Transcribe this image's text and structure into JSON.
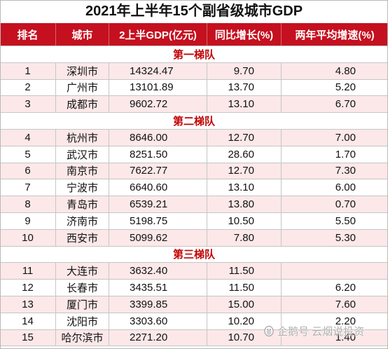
{
  "chart_data": {
    "type": "table",
    "title": "2021年上半年15个副省级城市GDP",
    "columns": [
      "排名",
      "城市",
      "2上半GDP(亿元)",
      "同比增长(%)",
      "两年平均增速(%)"
    ],
    "groups": [
      {
        "name": "第一梯队",
        "rows": [
          [
            "1",
            "深圳市",
            "14324.47",
            "9.70",
            "4.80"
          ],
          [
            "2",
            "广州市",
            "13101.89",
            "13.70",
            "5.20"
          ],
          [
            "3",
            "成都市",
            "9602.72",
            "13.10",
            "6.70"
          ]
        ]
      },
      {
        "name": "第二梯队",
        "rows": [
          [
            "4",
            "杭州市",
            "8646.00",
            "12.70",
            "7.00"
          ],
          [
            "5",
            "武汉市",
            "8251.50",
            "28.60",
            "1.70"
          ],
          [
            "6",
            "南京市",
            "7622.77",
            "12.70",
            "7.30"
          ],
          [
            "7",
            "宁波市",
            "6640.60",
            "13.10",
            "6.00"
          ],
          [
            "8",
            "青岛市",
            "6539.21",
            "13.80",
            "0.70"
          ],
          [
            "9",
            "济南市",
            "5198.75",
            "10.50",
            "5.50"
          ],
          [
            "10",
            "西安市",
            "5099.62",
            "7.80",
            "5.30"
          ]
        ]
      },
      {
        "name": "第三梯队",
        "rows": [
          [
            "11",
            "大连市",
            "3632.40",
            "11.50",
            ""
          ],
          [
            "12",
            "长春市",
            "3435.51",
            "11.50",
            "6.20"
          ],
          [
            "13",
            "厦门市",
            "3399.85",
            "15.00",
            "7.60"
          ],
          [
            "14",
            "沈阳市",
            "3303.60",
            "10.20",
            "2.20"
          ],
          [
            "15",
            "哈尔滨市",
            "2271.20",
            "10.70",
            "1.40"
          ]
        ]
      }
    ]
  },
  "colors": {
    "header_bg": "#c5101f",
    "header_text": "#ffffff",
    "group_text": "#c00000",
    "band": "#fce8e8",
    "grid": "#c6c6c6",
    "text": "#111111"
  },
  "watermark": {
    "text": "企鹅号 云烟说投资",
    "icon": "penguin-logo-icon"
  }
}
